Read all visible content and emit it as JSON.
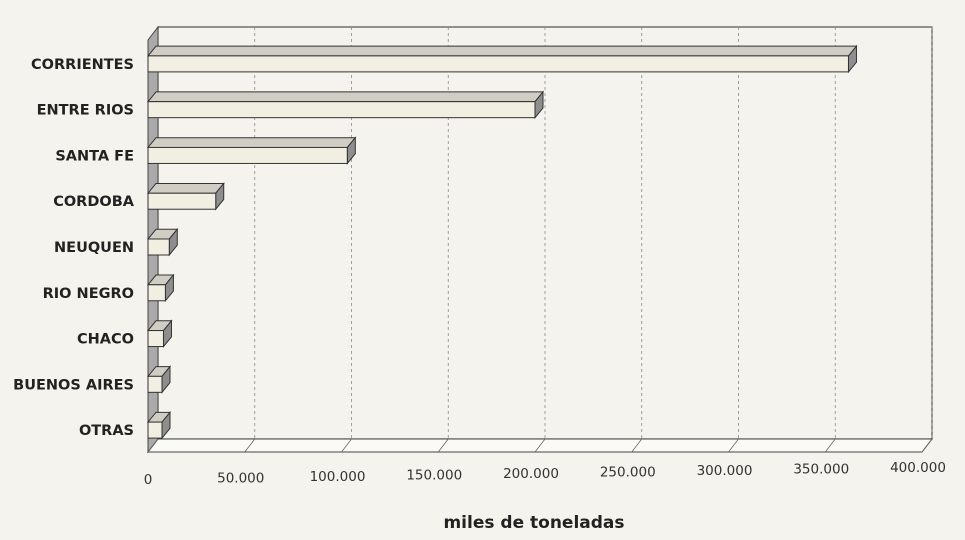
{
  "chart_data": {
    "type": "bar",
    "orientation": "horizontal",
    "style": "3d",
    "categories": [
      "CORRIENTES",
      "ENTRE RIOS",
      "SANTA FE",
      "CORDOBA",
      "NEUQUEN",
      "RIO NEGRO",
      "CHACO",
      "BUENOS AIRES",
      "OTRAS"
    ],
    "values": [
      362000,
      200000,
      103000,
      35000,
      11000,
      9000,
      8000,
      7000,
      6000
    ],
    "xlabel": "miles de toneladas",
    "ylabel": "",
    "xlim": [
      0,
      400000
    ],
    "xticks": [
      0,
      50000,
      100000,
      150000,
      200000,
      250000,
      300000,
      350000,
      400000
    ],
    "xtick_labels": [
      "0",
      "50.000",
      "100.000",
      "150.000",
      "200.000",
      "250.000",
      "300.000",
      "350.000",
      "400.000"
    ],
    "grid": true,
    "legend": "none",
    "colors": {
      "bar_front": "#f1eee2",
      "bar_top": "#cfcdc4",
      "bar_side": "#8e8e8e",
      "wall": "#aaaaaa",
      "grid": "#8a8a8a",
      "background": "#f4f3ee"
    }
  }
}
